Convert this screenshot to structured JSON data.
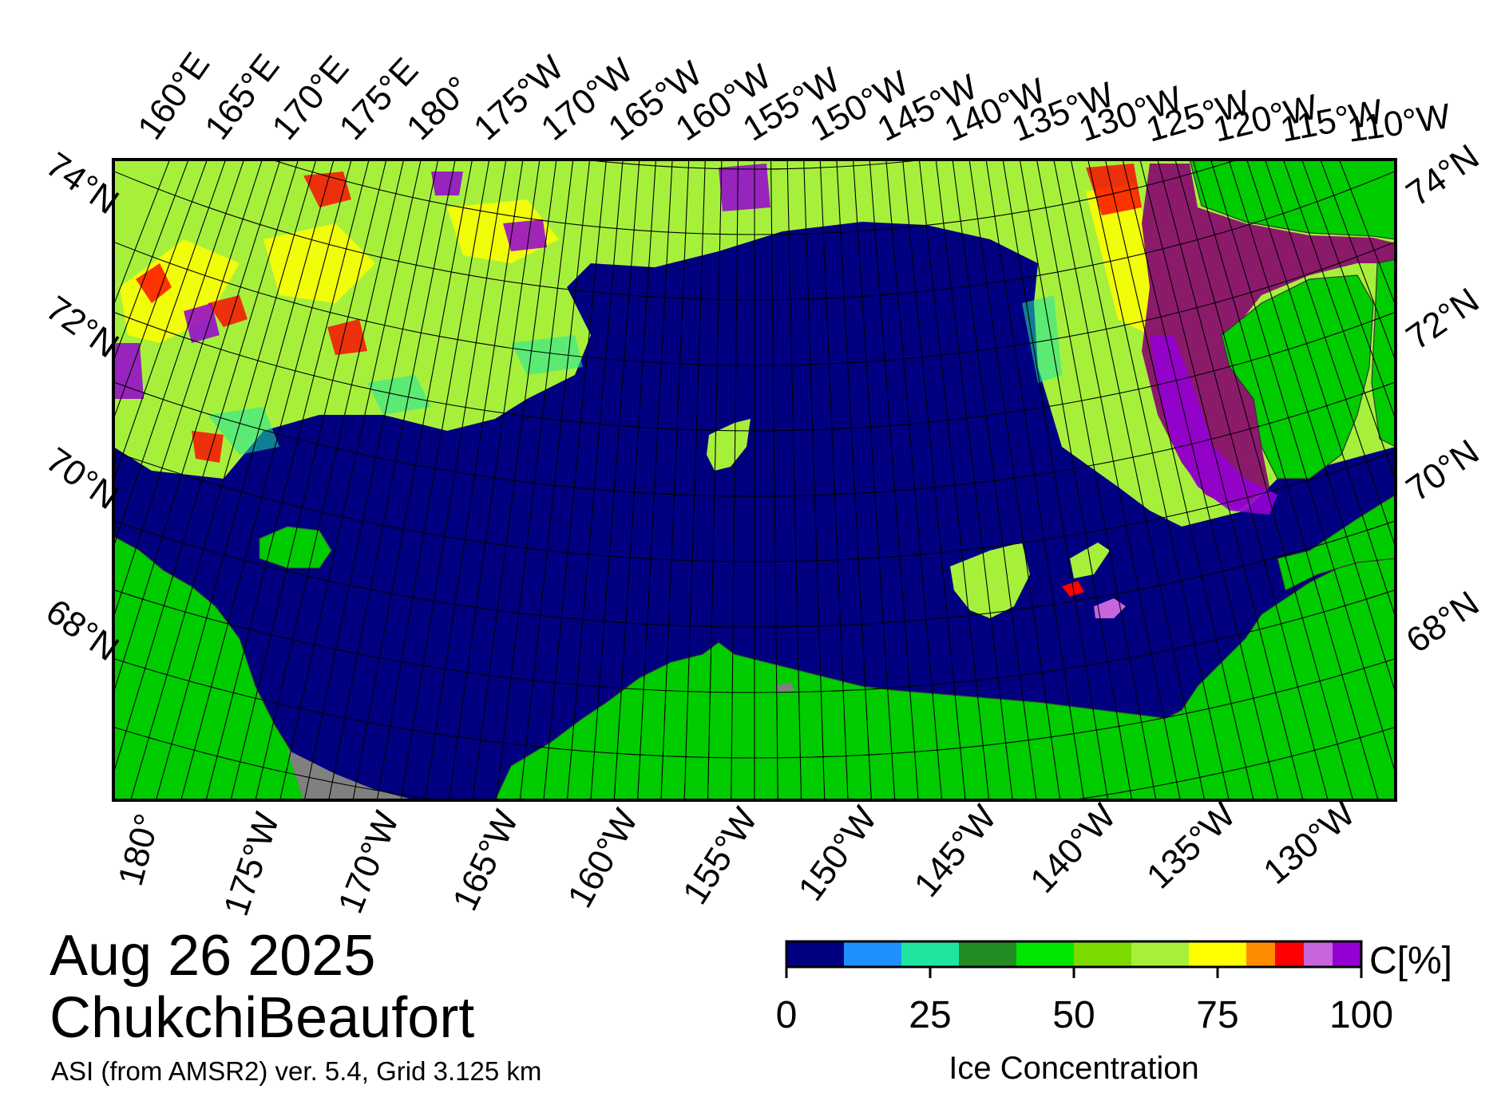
{
  "map": {
    "date": "Aug 26 2025",
    "region": "ChukchiBeaufort",
    "product": "ASI (from AMSR2) ver. 5.4,  Grid 3.125 km",
    "top_lon_labels": [
      "160°E",
      "165°E",
      "170°E",
      "175°E",
      "180°",
      "175°W",
      "170°W",
      "165°W",
      "160°W",
      "155°W",
      "150°W",
      "145°W",
      "140°W",
      "135°W",
      "130°W",
      "125°W",
      "120°W",
      "115°W",
      "110°W"
    ],
    "bottom_lon_labels": [
      "180°",
      "175°W",
      "170°W",
      "165°W",
      "160°W",
      "155°W",
      "150°W",
      "145°W",
      "140°W",
      "135°W",
      "130°W"
    ],
    "left_lat_labels": [
      "74°N",
      "72°N",
      "70°N",
      "68°N"
    ],
    "right_lat_labels": [
      "74°N",
      "72°N",
      "70°N",
      "68°N"
    ],
    "colors": {
      "ocean": "#000080",
      "land": "#00cc00",
      "no_data": "#808080",
      "frame": "#000000"
    }
  },
  "colorbar": {
    "title": "Ice Concentration",
    "unit": "C[%]",
    "tick_labels": [
      "0",
      "25",
      "50",
      "75",
      "100"
    ],
    "tick_values": [
      0,
      25,
      50,
      75,
      100
    ],
    "bins": [
      {
        "from": 0,
        "to": 10,
        "color": "#000080"
      },
      {
        "from": 10,
        "to": 20,
        "color": "#1e90ff"
      },
      {
        "from": 20,
        "to": 30,
        "color": "#1ee6a0"
      },
      {
        "from": 30,
        "to": 40,
        "color": "#228b22"
      },
      {
        "from": 40,
        "to": 50,
        "color": "#00e600"
      },
      {
        "from": 50,
        "to": 60,
        "color": "#7cdc00"
      },
      {
        "from": 60,
        "to": 70,
        "color": "#a6f03c"
      },
      {
        "from": 70,
        "to": 80,
        "color": "#ffff00"
      },
      {
        "from": 80,
        "to": 85,
        "color": "#ff8c00"
      },
      {
        "from": 85,
        "to": 90,
        "color": "#ff0000"
      },
      {
        "from": 90,
        "to": 95,
        "color": "#c864dc"
      },
      {
        "from": 95,
        "to": 100,
        "color": "#9400d3"
      }
    ]
  }
}
